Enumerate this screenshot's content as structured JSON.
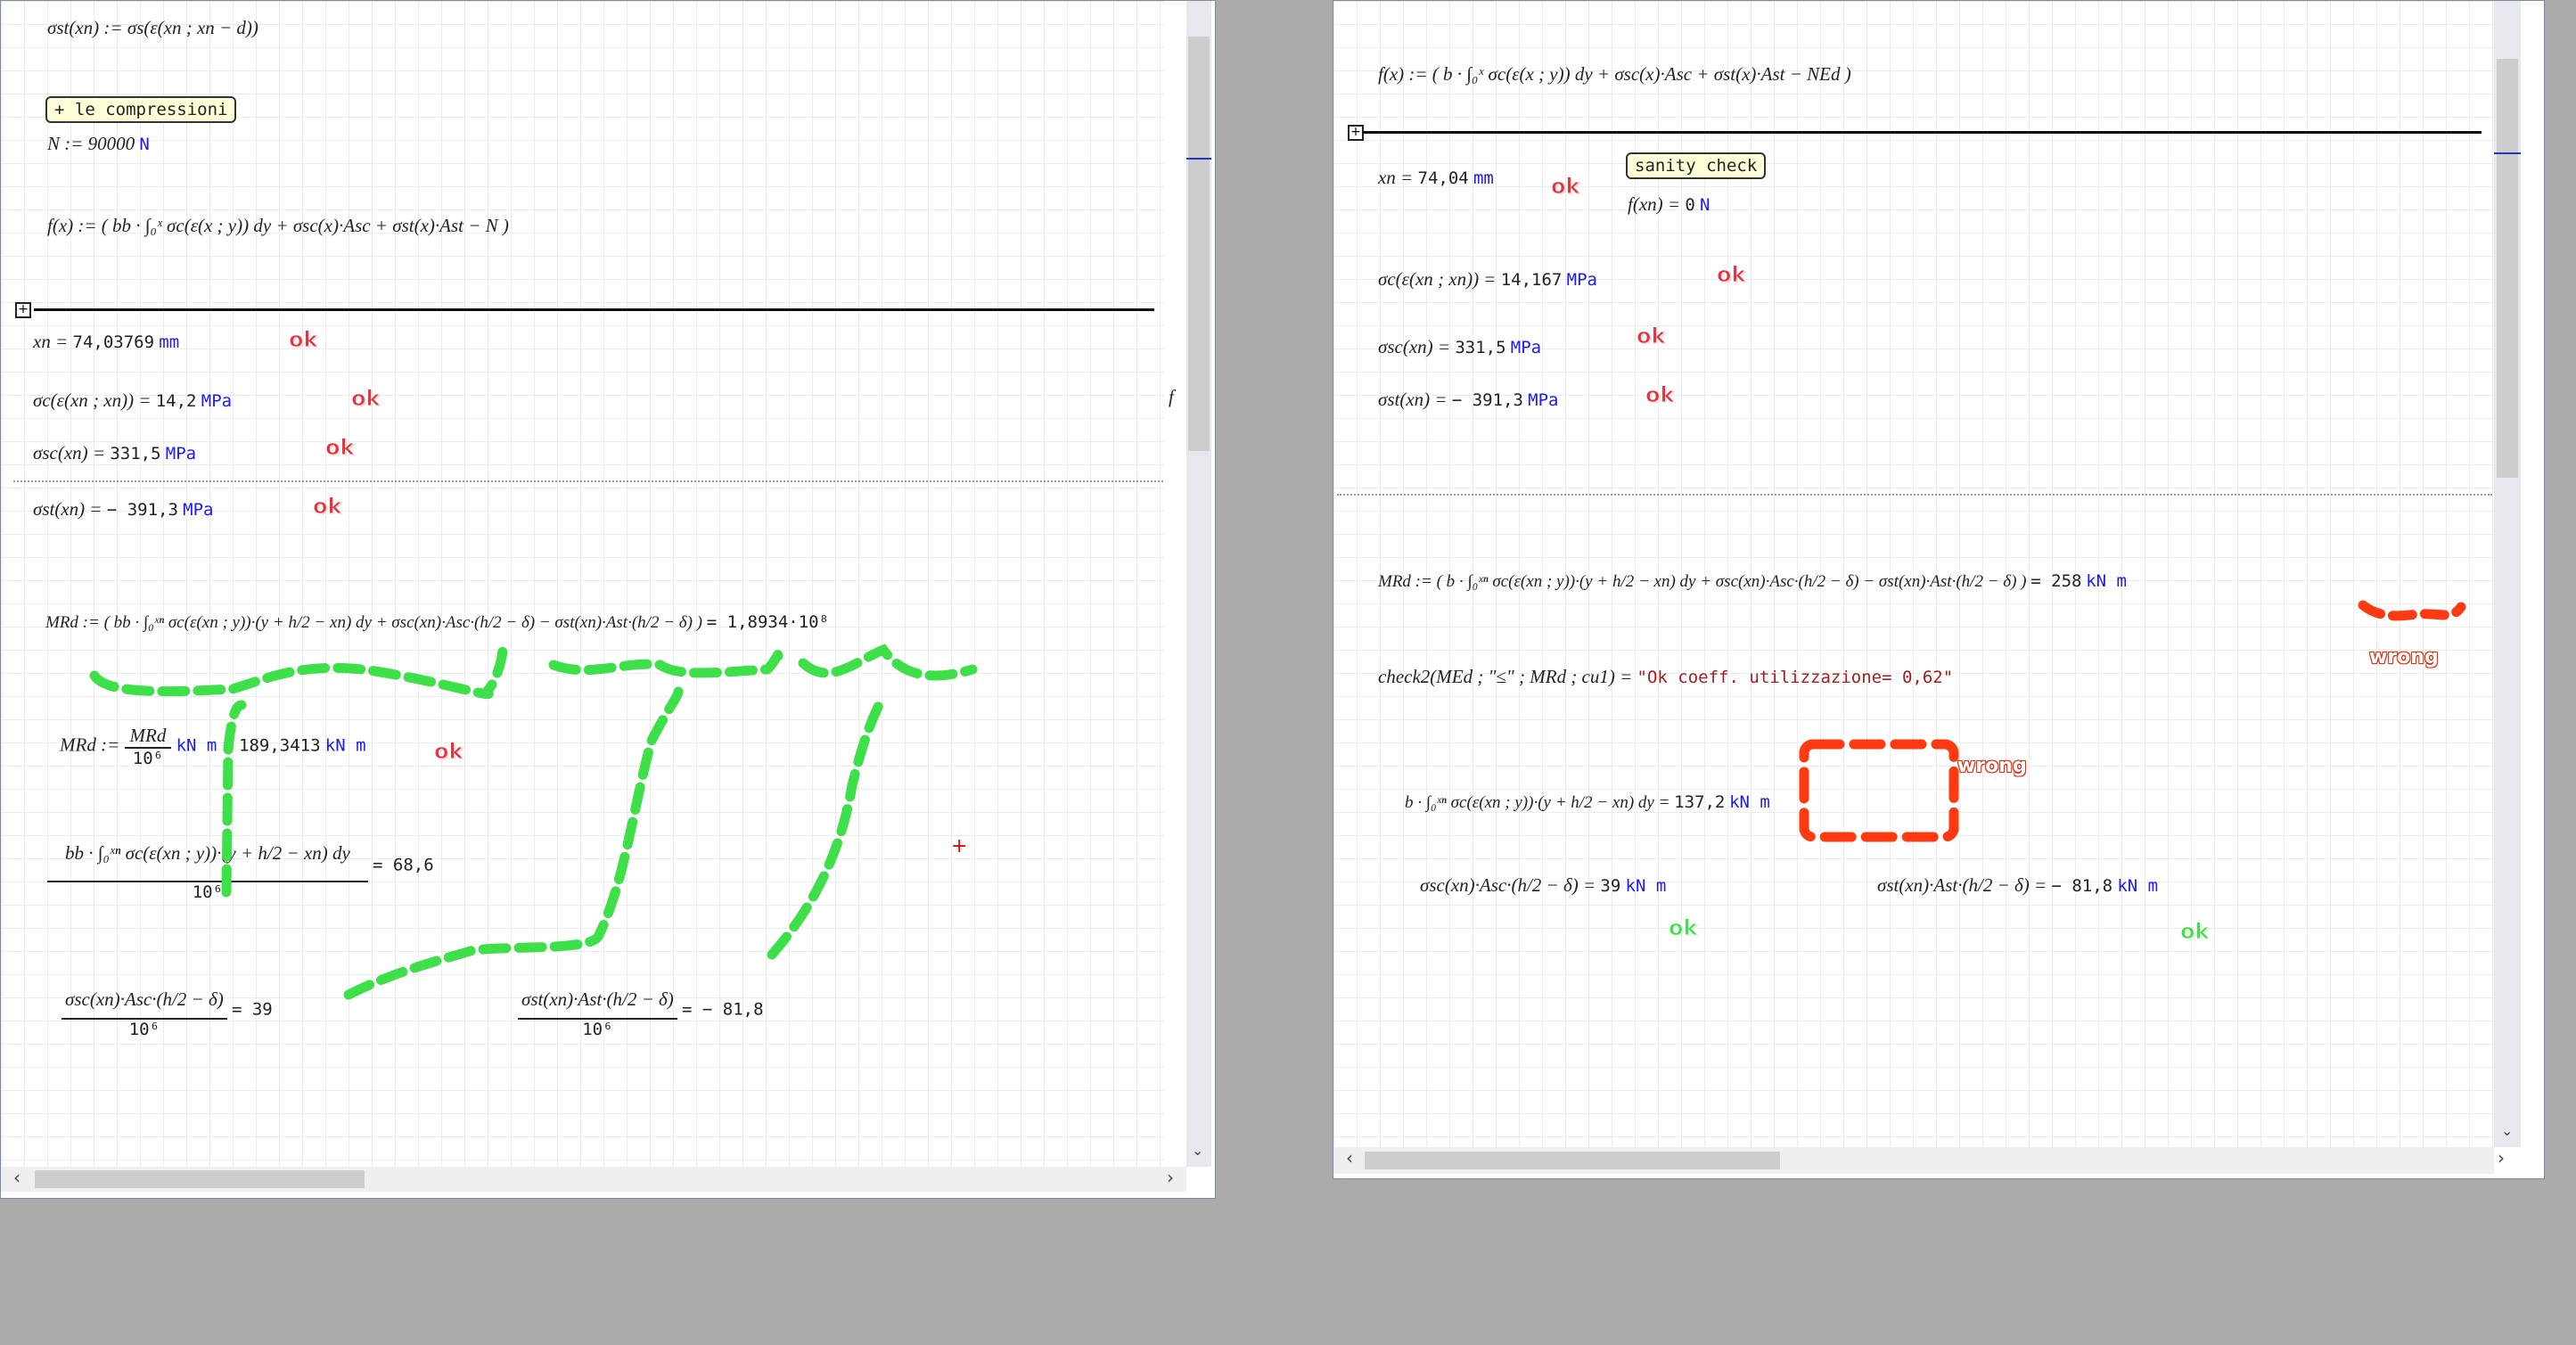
{
  "left": {
    "sigma_st_def": "σst(xn) := σs(ε(xn ; xn − d))",
    "note_label": "+ le compressioni",
    "n_def": "N := 90000",
    "n_unit": "N",
    "f_def": "f(x) := ( bb · ∫₀ˣ σc(ε(x ; y)) dy + σsc(x)·Asc + σst(x)·Ast − N )",
    "xn_label": "xn = ",
    "xn_value": "74,03769",
    "xn_unit": "mm",
    "sigma_c_label": "σc(ε(xn ; xn)) = ",
    "sigma_c_value": "14,2",
    "sigma_sc_label": "σsc(xn) = ",
    "sigma_sc_value": "331,5",
    "sigma_st_label": "σst(xn) = ",
    "sigma_st_value": "− 391,3",
    "mpa_unit": "MPa",
    "mrd_def": "MRd := ( bb · ∫₀ˣⁿ σc(ε(xn ; y))·(y + h/2 − xn) dy + σsc(xn)·Asc·(h/2 − δ) − σst(xn)·Ast·(h/2 − δ) )",
    "mrd_result": "= 1,8934·10⁸",
    "mrd_conv_label": "MRd :=",
    "mrd_conv_num": "MRd",
    "mrd_conv_den": "10⁶",
    "mrd_conv_value": "189,3413",
    "knm_unit": "kN m",
    "int_num": "bb · ∫₀ˣⁿ σc(ε(xn ; y))·(y + h/2 − xn) dy",
    "int_den": "10⁶",
    "int_value": "= 68,6",
    "sc_num": "σsc(xn)·Asc·(h/2 − δ)",
    "sc_den": "10⁶",
    "sc_value": "= 39",
    "st_num": "σst(xn)·Ast·(h/2 − δ)",
    "st_den": "10⁶",
    "st_value": "= − 81,8",
    "side_f": "f",
    "ok": "ok"
  },
  "right": {
    "f_def": "f(x) := ( b · ∫₀ˣ σc(ε(x ; y)) dy + σsc(x)·Asc + σst(x)·Ast − NEd )",
    "xn_label": "xn = ",
    "xn_value": "74,04",
    "xn_unit": "mm",
    "note_label": "sanity check",
    "fxn_label": "f(xn) = ",
    "fxn_value": "0",
    "fxn_unit": "N",
    "sigma_c_label": "σc(ε(xn ; xn)) = ",
    "sigma_c_value": "14,167",
    "sigma_sc_label": "σsc(xn) = ",
    "sigma_sc_value": "331,5",
    "sigma_st_label": "σst(xn) = ",
    "sigma_st_value": "− 391,3",
    "mpa_unit": "MPa",
    "mrd_def": "MRd := ( b · ∫₀ˣⁿ σc(ε(xn ; y))·(y + h/2 − xn) dy + σsc(xn)·Asc·(h/2 − δ) − σst(xn)·Ast·(h/2 − δ) )",
    "mrd_value": "= 258",
    "knm_unit": "kN m",
    "check2_label": "check2(MEd ; \"≤\" ; MRd ; cu1) = ",
    "check2_value": "\"Ok coeff. utilizzazione= 0,62\"",
    "int_expr": "b · ∫₀ˣⁿ σc(ε(xn ; y))·(y + h/2 − xn) dy = ",
    "int_value": "137,2",
    "sc_expr": "σsc(xn)·Asc·(h/2 − δ) = ",
    "sc_value": "39",
    "st_expr": "σst(xn)·Ast·(h/2 − δ) = ",
    "st_value": "− 81,8",
    "ok": "ok",
    "wrong": "wrong"
  },
  "colors": {
    "ok_red": "#e8333f",
    "ok_green": "#3ee04a",
    "annotation_green": "#3ee04a",
    "annotation_red": "#ff3a10",
    "unit_blue": "#1a1aff"
  }
}
